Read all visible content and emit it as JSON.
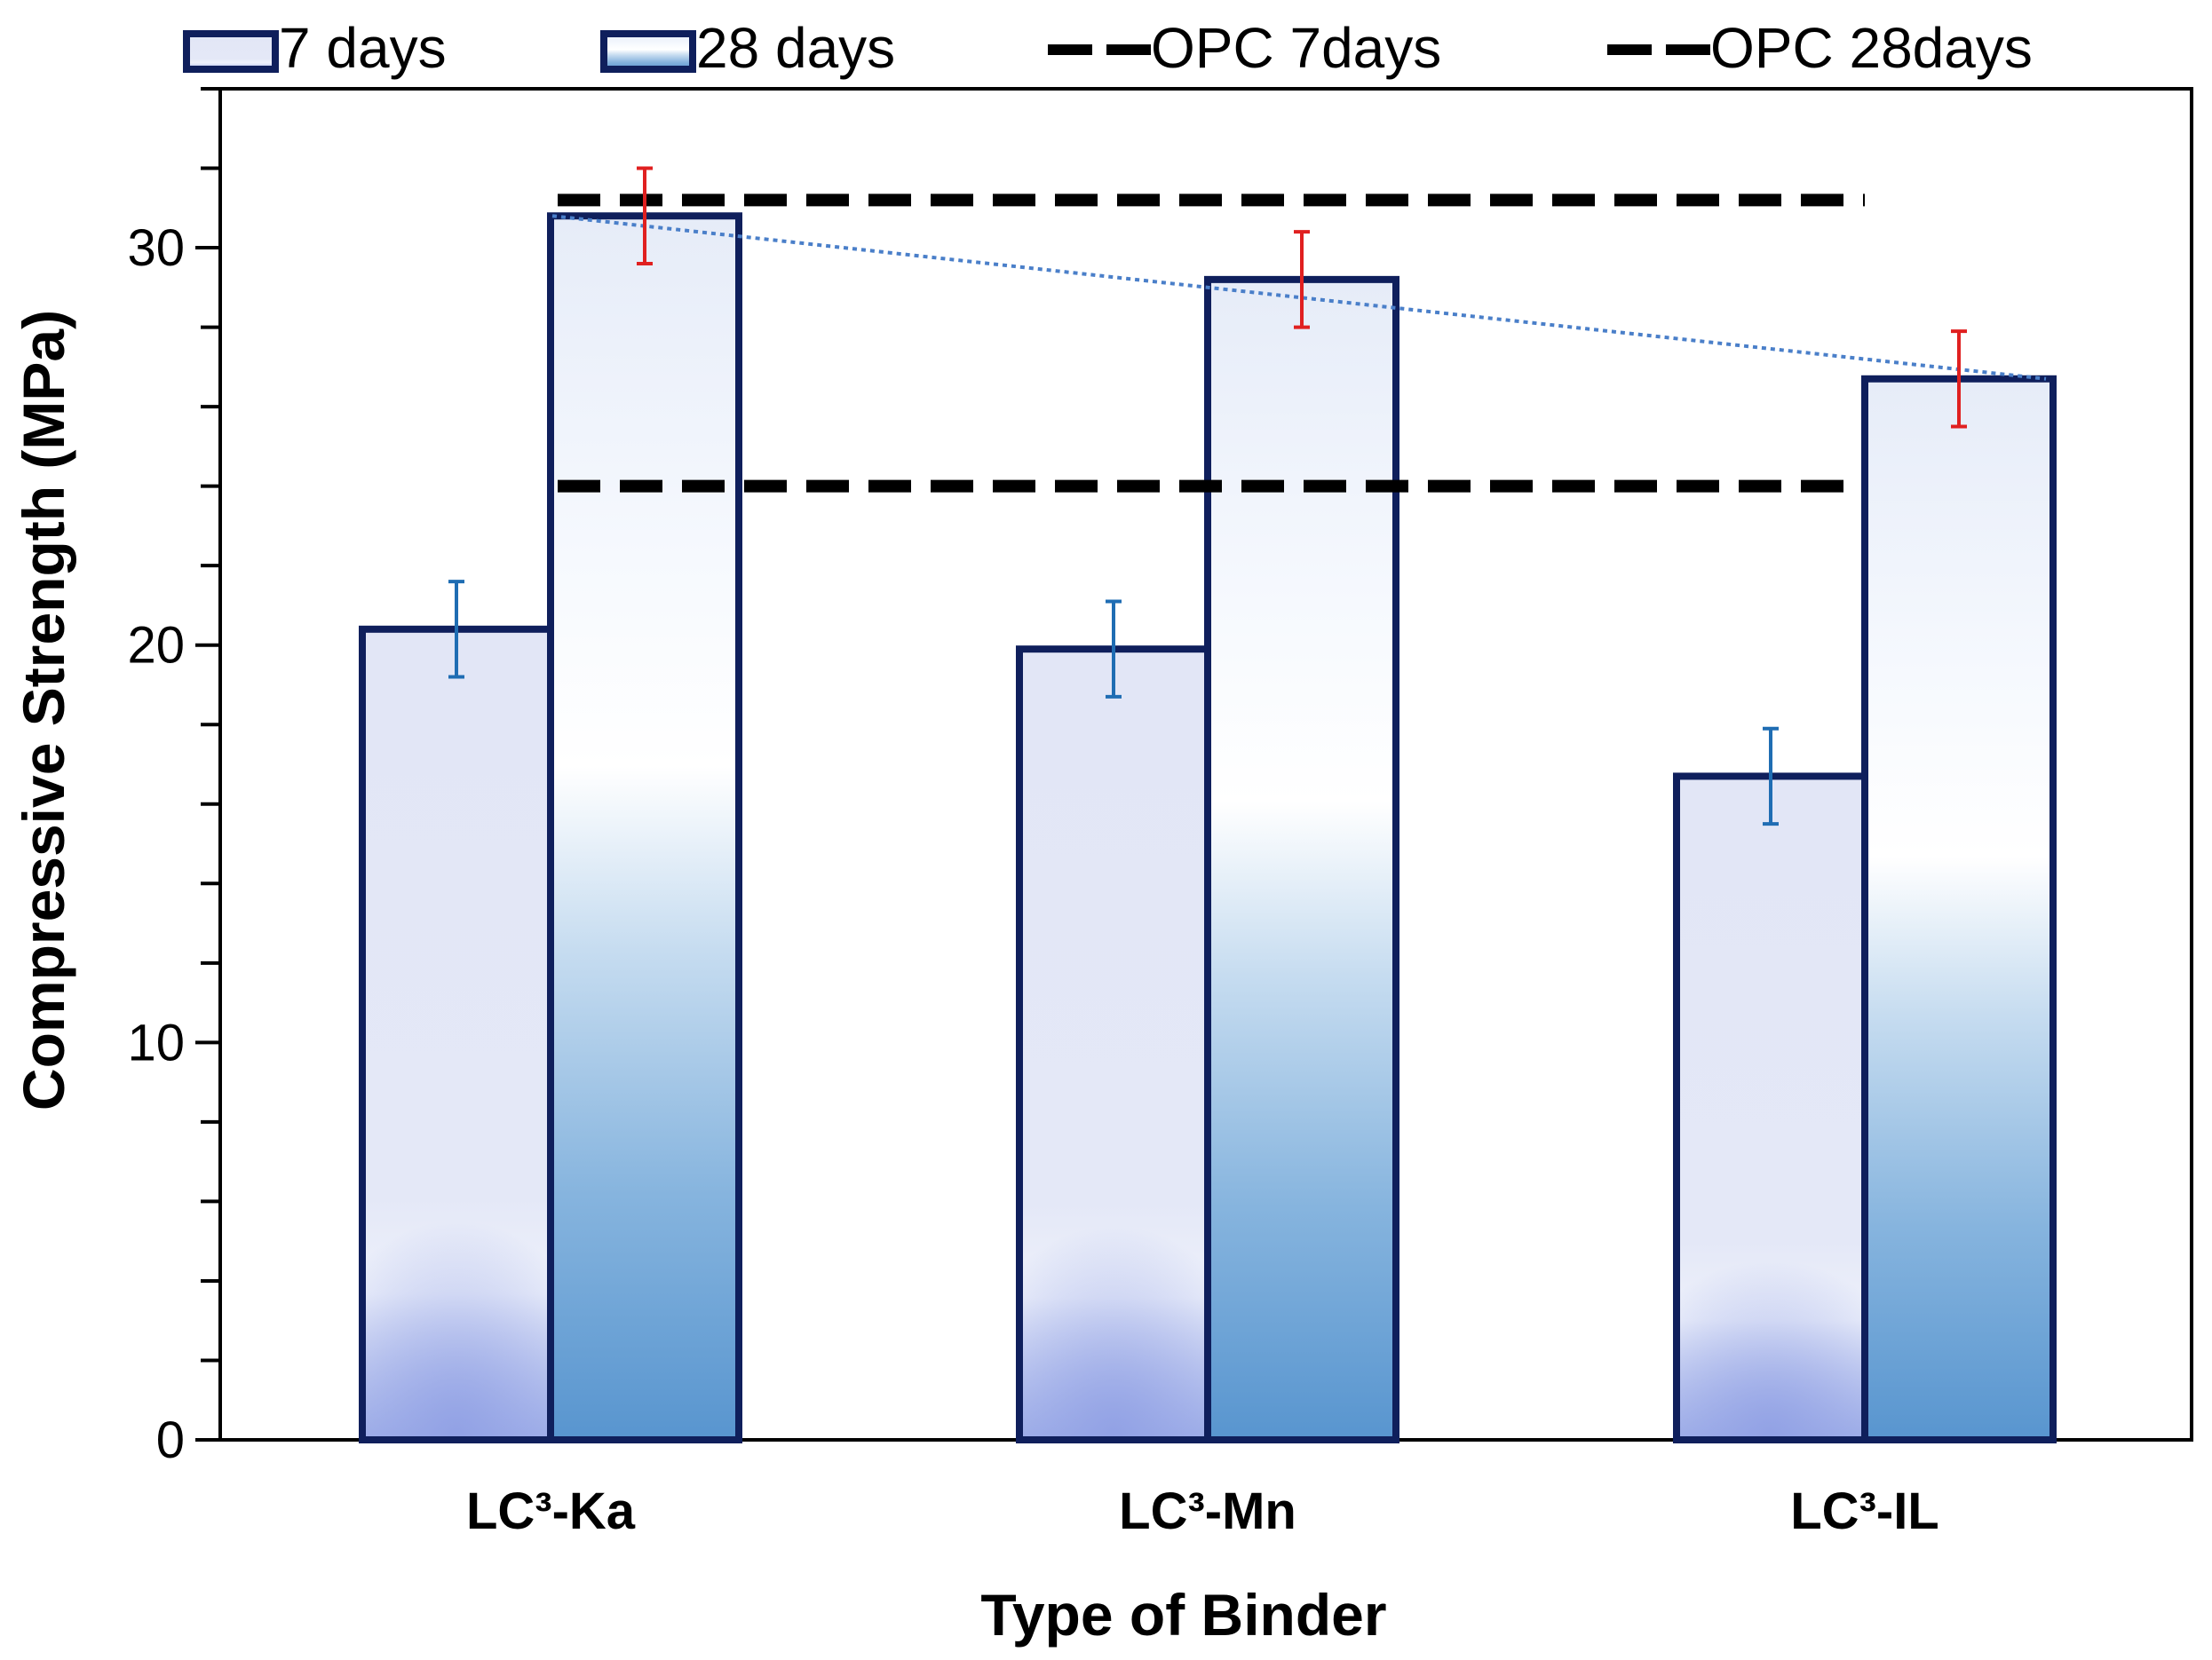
{
  "chart_data": {
    "type": "bar",
    "title": "",
    "xlabel": "Type of Binder",
    "ylabel": "Compressive Strength (MPa)",
    "ylim": [
      0,
      34
    ],
    "yticks": [
      0,
      10,
      20,
      30
    ],
    "minor_tick_step": 2,
    "categories": [
      "LC³-Ka",
      "LC³-Mn",
      "LC³-IL"
    ],
    "series": [
      {
        "name": "7 days",
        "values": [
          20.4,
          19.9,
          16.7
        ],
        "errors": [
          1.2,
          1.2,
          1.2
        ],
        "error_color": "#1f6db3"
      },
      {
        "name": "28 days",
        "values": [
          30.8,
          29.2,
          26.7
        ],
        "errors": [
          1.2,
          1.2,
          1.2
        ],
        "error_color": "#e02020"
      }
    ],
    "reference_lines": [
      {
        "name": "OPC 7days",
        "value": 24.0,
        "style": "dashed",
        "color": "#000000"
      },
      {
        "name": "OPC 28days",
        "value": 31.2,
        "style": "dashed",
        "color": "#000000"
      }
    ],
    "trendline": {
      "series": "28 days",
      "style": "dotted",
      "color": "#4a7fc9"
    },
    "legend_position": "top",
    "colors": {
      "bar_border": "#0f1f5c",
      "frame": "#000000"
    }
  }
}
